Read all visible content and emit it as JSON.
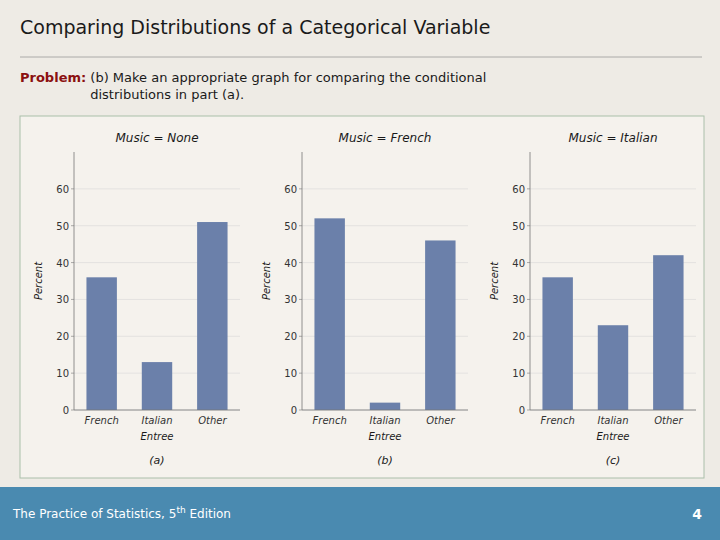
{
  "title": "Comparing Distributions of a Categorical Variable",
  "problem_bold": "Problem:",
  "problem_text": " (b) Make an appropriate graph for comparing the conditional\ndistributions in part (a).",
  "footer_text": "The Practice of Statistics, 5",
  "footer_superscript": "th",
  "footer_text2": " Edition",
  "footer_number": "4",
  "chart_data": [
    {
      "type": "bar",
      "title": "Music = None",
      "subtitle": "(a)",
      "xlabel": "Entree",
      "ylabel": "Percent",
      "categories": [
        "French",
        "Italian",
        "Other"
      ],
      "values": [
        36,
        13,
        51
      ],
      "color": "#6b80aa",
      "ylim": [
        0,
        70
      ],
      "yticks": [
        0,
        10,
        20,
        30,
        40,
        50,
        60
      ],
      "grid": true
    },
    {
      "type": "bar",
      "title": "Music = French",
      "subtitle": "(b)",
      "xlabel": "Entree",
      "ylabel": "Percent",
      "categories": [
        "French",
        "Italian",
        "Other"
      ],
      "values": [
        52,
        2,
        46
      ],
      "color": "#6b80aa",
      "ylim": [
        0,
        70
      ],
      "yticks": [
        0,
        10,
        20,
        30,
        40,
        50,
        60
      ],
      "grid": true
    },
    {
      "type": "bar",
      "title": "Music = Italian",
      "subtitle": "(c)",
      "xlabel": "Entree",
      "ylabel": "Percent",
      "categories": [
        "French",
        "Italian",
        "Other"
      ],
      "values": [
        36,
        23,
        42
      ],
      "color": "#6b80aa",
      "ylim": [
        0,
        70
      ],
      "yticks": [
        0,
        10,
        20,
        30,
        40,
        50,
        60
      ],
      "grid": true
    }
  ]
}
